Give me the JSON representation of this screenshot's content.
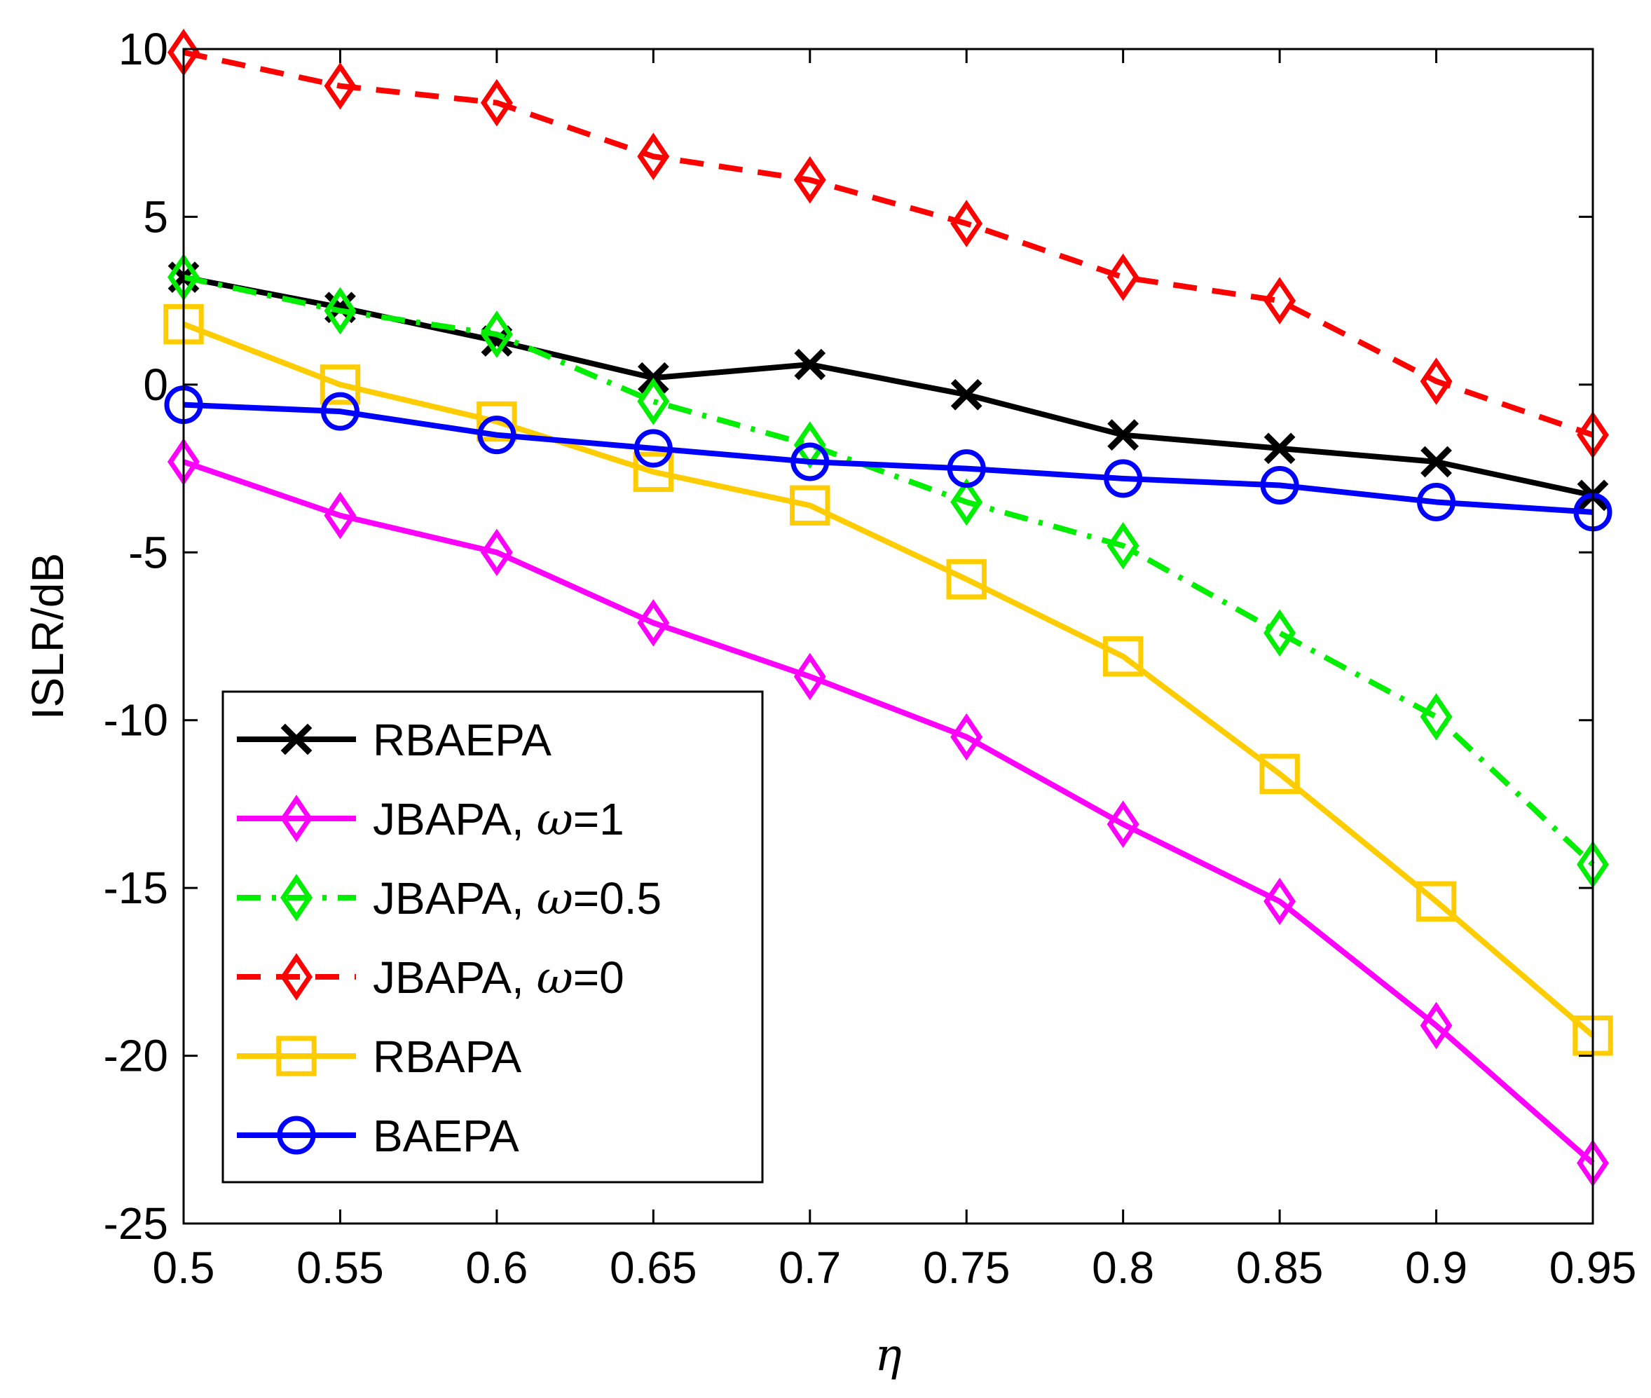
{
  "chart_data": {
    "type": "line",
    "title": "",
    "xlabel": "η",
    "ylabel": "ISLR/dB",
    "xlim": [
      0.5,
      0.95
    ],
    "ylim": [
      -25,
      10
    ],
    "xticks": [
      0.5,
      0.55,
      0.6,
      0.65,
      0.7,
      0.75,
      0.8,
      0.85,
      0.9,
      0.95
    ],
    "xtick_labels": [
      "0.5",
      "0.55",
      "0.6",
      "0.65",
      "0.7",
      "0.75",
      "0.8",
      "0.85",
      "0.9",
      "0.95"
    ],
    "yticks": [
      -25,
      -20,
      -15,
      -10,
      -5,
      0,
      5,
      10
    ],
    "ytick_labels": [
      "-25",
      "-20",
      "-15",
      "-10",
      "-5",
      "0",
      "5",
      "10"
    ],
    "grid": false,
    "legend_location": "bottom-left",
    "x": [
      0.5,
      0.55,
      0.6,
      0.65,
      0.7,
      0.75,
      0.8,
      0.85,
      0.9,
      0.95
    ],
    "series": [
      {
        "name": "RBAEPA",
        "legend_main": "RBAEPA",
        "legend_suffix": "",
        "color": "#000000",
        "dash": "solid",
        "marker": "x",
        "values": [
          3.2,
          2.3,
          1.3,
          0.2,
          0.6,
          -0.3,
          -1.5,
          -1.9,
          -2.3,
          -3.3
        ]
      },
      {
        "name": "JBAPA, ω=1",
        "legend_main": "JBAPA, ",
        "legend_omega": "ω",
        "legend_suffix": "=1",
        "color": "#ff00ff",
        "dash": "solid",
        "marker": "diamond",
        "values": [
          -2.3,
          -3.9,
          -5.0,
          -7.1,
          -8.7,
          -10.5,
          -13.1,
          -15.4,
          -19.1,
          -23.2
        ]
      },
      {
        "name": "JBAPA, ω=0.5",
        "legend_main": "JBAPA, ",
        "legend_omega": "ω",
        "legend_suffix": "=0.5",
        "color": "#00ee00",
        "dash": "dashdot",
        "marker": "diamond",
        "values": [
          3.2,
          2.2,
          1.5,
          -0.5,
          -1.8,
          -3.5,
          -4.8,
          -7.4,
          -9.9,
          -14.3
        ]
      },
      {
        "name": "JBAPA, ω=0",
        "legend_main": "JBAPA, ",
        "legend_omega": "ω",
        "legend_suffix": "=0",
        "color": "#ff0000",
        "dash": "dashed",
        "marker": "diamond",
        "values": [
          9.9,
          8.9,
          8.4,
          6.8,
          6.1,
          4.8,
          3.2,
          2.5,
          0.1,
          -1.5
        ]
      },
      {
        "name": "RBAPA",
        "legend_main": "RBAPA",
        "legend_suffix": "",
        "color": "#ffcc00",
        "dash": "solid",
        "marker": "square",
        "values": [
          1.8,
          0.0,
          -1.1,
          -2.6,
          -3.6,
          -5.8,
          -8.1,
          -11.6,
          -15.4,
          -19.4
        ]
      },
      {
        "name": "BAEPA",
        "legend_main": "BAEPA",
        "legend_suffix": "",
        "color": "#0000ff",
        "dash": "solid",
        "marker": "circle",
        "values": [
          -0.6,
          -0.8,
          -1.5,
          -1.9,
          -2.3,
          -2.5,
          -2.8,
          -3.0,
          -3.5,
          -3.8
        ]
      }
    ]
  }
}
